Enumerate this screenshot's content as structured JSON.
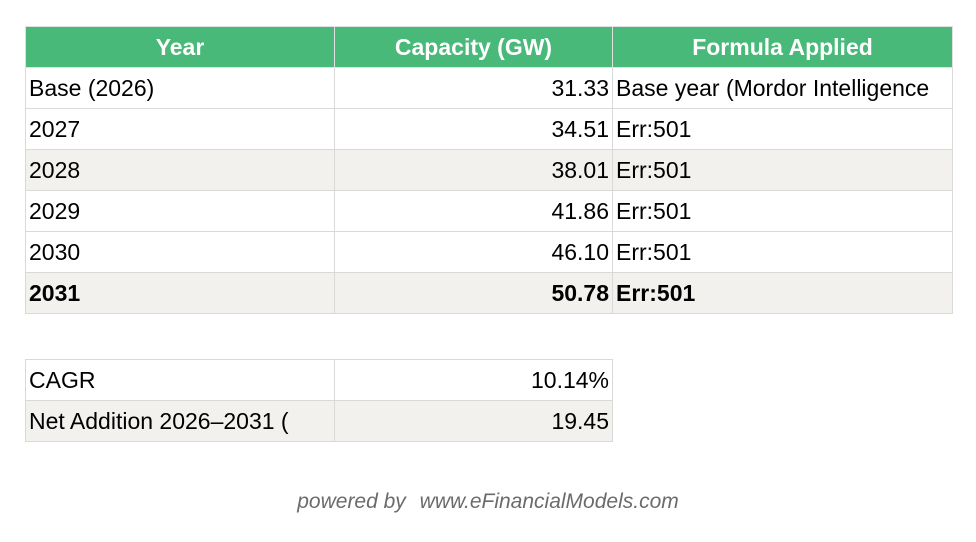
{
  "table": {
    "headers": [
      "Year",
      "Capacity (GW)",
      "Formula Applied"
    ],
    "rows": [
      {
        "year": "Base (2026)",
        "capacity": "31.33",
        "formula": "Base year (Mordor Intelligence"
      },
      {
        "year": "2027",
        "capacity": "34.51",
        "formula": "Err:501"
      },
      {
        "year": "2028",
        "capacity": "38.01",
        "formula": "Err:501"
      },
      {
        "year": "2029",
        "capacity": "41.86",
        "formula": "Err:501"
      },
      {
        "year": "2030",
        "capacity": "46.10",
        "formula": "Err:501"
      },
      {
        "year": "2031",
        "capacity": "50.78",
        "formula": "Err:501"
      }
    ]
  },
  "summary": {
    "rows": [
      {
        "label": "CAGR",
        "value": "10.14%"
      },
      {
        "label": "Net Addition 2026–2031 (",
        "value": "19.45"
      }
    ]
  },
  "footer": {
    "powered_by": "powered by",
    "site": "www.eFinancialModels.com"
  },
  "colors": {
    "header_bg": "#48b978",
    "header_text": "#ffffff",
    "alt_row": "#f2f1ee",
    "grid": "#d9d9d9"
  }
}
